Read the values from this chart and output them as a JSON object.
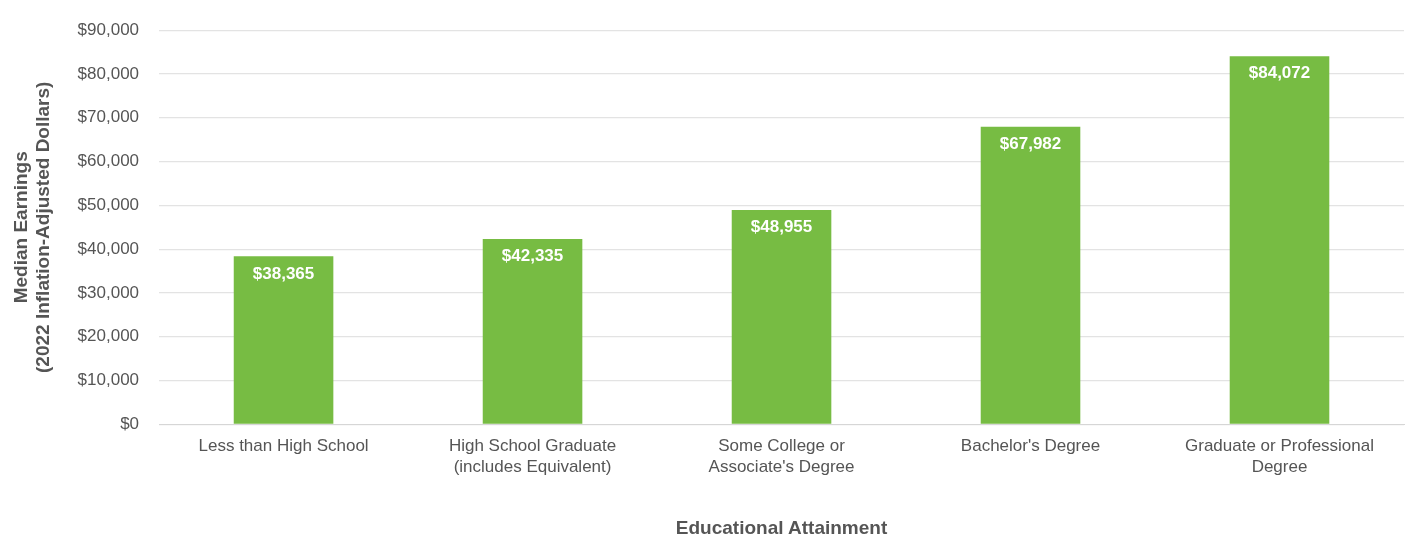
{
  "chart_data": {
    "type": "bar",
    "xlabel": "Educational Attainment",
    "ylabel": "Median Earnings\n(2022 Inflation-Adjusted Dollars)",
    "categories": [
      "Less than High School",
      "High School Graduate\n(includes Equivalent)",
      "Some College or\nAssociate's Degree",
      "Bachelor's Degree",
      "Graduate or Professional\nDegree"
    ],
    "values": [
      38365,
      42335,
      48955,
      67982,
      84072
    ],
    "value_labels": [
      "$38,365",
      "$42,335",
      "$48,955",
      "$67,982",
      "$84,072"
    ],
    "color": "#77bc43",
    "ylim": [
      0,
      90000
    ],
    "yticks": [
      {
        "value": 0,
        "label": "$0"
      },
      {
        "value": 10000,
        "label": "$10,000"
      },
      {
        "value": 20000,
        "label": "$20,000"
      },
      {
        "value": 30000,
        "label": "$30,000"
      },
      {
        "value": 40000,
        "label": "$40,000"
      },
      {
        "value": 50000,
        "label": "$50,000"
      },
      {
        "value": 60000,
        "label": "$60,000"
      },
      {
        "value": 70000,
        "label": "$70,000"
      },
      {
        "value": 80000,
        "label": "$80,000"
      },
      {
        "value": 90000,
        "label": "$90,000"
      }
    ],
    "grid": "y"
  }
}
